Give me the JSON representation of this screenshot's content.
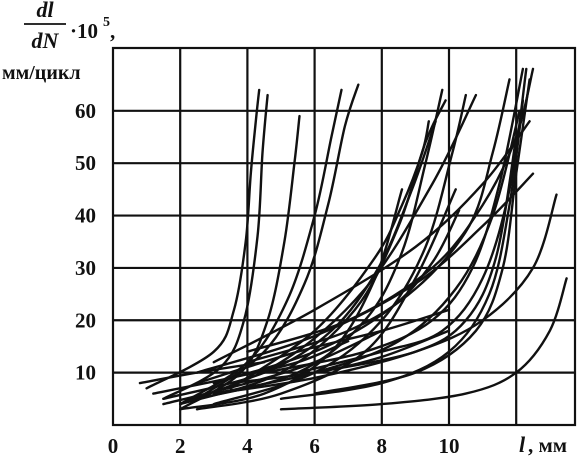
{
  "chart_data": {
    "type": "line",
    "ylabel_fraction_top": "dl",
    "ylabel_fraction_bottom": "dN",
    "ylabel_multiplier": "·10",
    "ylabel_exponent": "5",
    "ylabel_comma": ",",
    "ylabel_units": "мм/цикл",
    "xlabel_var": "l",
    "xlabel_units": ", мм",
    "xlim": [
      0,
      13.75
    ],
    "ylim": [
      0,
      72
    ],
    "x_ticks": [
      "0",
      "2",
      "4",
      "6",
      "8",
      "10"
    ],
    "y_ticks": [
      "10",
      "20",
      "30",
      "40",
      "50",
      "60"
    ],
    "grid": true,
    "series": [
      {
        "x": [
          1.0,
          3.0,
          3.6,
          3.95,
          4.1,
          4.25,
          4.35
        ],
        "y": [
          7,
          14,
          22,
          35,
          48,
          58,
          64
        ]
      },
      {
        "x": [
          1.5,
          3.2,
          3.9,
          4.3,
          4.45,
          4.6
        ],
        "y": [
          5,
          11,
          20,
          36,
          52,
          63
        ]
      },
      {
        "x": [
          2.0,
          3.8,
          4.6,
          5.1,
          5.4,
          5.55
        ],
        "y": [
          3,
          10,
          20,
          35,
          50,
          59
        ]
      },
      {
        "x": [
          2.0,
          4.0,
          5.2,
          6.0,
          6.5,
          6.8
        ],
        "y": [
          4,
          12,
          24,
          40,
          55,
          64
        ]
      },
      {
        "x": [
          2.5,
          4.5,
          5.7,
          6.4,
          6.9,
          7.3
        ],
        "y": [
          5,
          14,
          27,
          42,
          57,
          65
        ]
      },
      {
        "x": [
          1.5,
          4.5,
          6.5,
          7.9,
          8.9,
          9.6
        ],
        "y": [
          5,
          10,
          18,
          30,
          45,
          58
        ]
      },
      {
        "x": [
          2.5,
          5.5,
          7.5,
          8.6,
          9.3,
          9.8
        ],
        "y": [
          5,
          10,
          20,
          33,
          50,
          64
        ]
      },
      {
        "x": [
          2.0,
          5.0,
          7.2,
          8.5,
          9.3,
          9.9
        ],
        "y": [
          4,
          10,
          22,
          38,
          54,
          62
        ]
      },
      {
        "x": [
          3.0,
          6.0,
          8.0,
          9.3,
          10.1,
          10.5
        ],
        "y": [
          4,
          10,
          20,
          34,
          52,
          63
        ]
      },
      {
        "x": [
          2.0,
          5.0,
          7.5,
          9.5,
          10.8
        ],
        "y": [
          4,
          12,
          26,
          46,
          63
        ]
      },
      {
        "x": [
          3.5,
          6.0,
          7.8,
          8.6,
          9.2,
          9.4
        ],
        "y": [
          7,
          18,
          32,
          42,
          52,
          58
        ]
      },
      {
        "x": [
          3.0,
          6.0,
          8.2,
          9.5,
          10.3
        ],
        "y": [
          8,
          14,
          22,
          31,
          41
        ]
      },
      {
        "x": [
          4.0,
          7.0,
          9.0,
          10.6,
          11.3,
          11.8
        ],
        "y": [
          12,
          18,
          26,
          38,
          52,
          66
        ]
      },
      {
        "x": [
          4.5,
          7.5,
          9.5,
          10.7,
          11.5,
          12.2
        ],
        "y": [
          10,
          14,
          20,
          30,
          46,
          68
        ]
      },
      {
        "x": [
          5.5,
          8.0,
          9.8,
          11.0,
          11.8,
          12.3
        ],
        "y": [
          10,
          14,
          18,
          28,
          45,
          68
        ]
      },
      {
        "x": [
          4.0,
          7.0,
          9.5,
          11.0,
          12.0,
          12.5
        ],
        "y": [
          14,
          20,
          30,
          42,
          55,
          68
        ]
      },
      {
        "x": [
          3.0,
          6.0,
          9.0,
          11.0,
          12.4
        ],
        "y": [
          12,
          22,
          34,
          46,
          58
        ]
      },
      {
        "x": [
          2.5,
          6.0,
          9.0,
          11.0,
          12.5
        ],
        "y": [
          10,
          17,
          27,
          38,
          48
        ]
      },
      {
        "x": [
          3.0,
          6.0,
          9.0,
          11.0,
          12.5,
          13.2
        ],
        "y": [
          6,
          9,
          14,
          20,
          30,
          44
        ]
      },
      {
        "x": [
          5.0,
          8.0,
          10.5,
          12.0,
          13.0,
          13.5
        ],
        "y": [
          3,
          4,
          6,
          10,
          18,
          28
        ]
      },
      {
        "x": [
          6.0,
          9.0,
          10.8,
          11.6,
          12.0,
          12.4
        ],
        "y": [
          6,
          10,
          18,
          30,
          48,
          66
        ]
      },
      {
        "x": [
          5.0,
          8.0,
          10.0,
          11.2,
          11.8,
          12.2
        ],
        "y": [
          5,
          8,
          14,
          25,
          42,
          62
        ]
      },
      {
        "x": [
          6.0,
          9.0,
          10.5,
          11.4,
          12.0
        ],
        "y": [
          10,
          14,
          20,
          32,
          55
        ]
      },
      {
        "x": [
          3.0,
          6.0,
          8.5,
          10.2,
          11.3,
          12.1
        ],
        "y": [
          6,
          10,
          16,
          26,
          40,
          60
        ]
      },
      {
        "x": [
          2.5,
          5.0,
          7.5,
          9.0,
          10.2
        ],
        "y": [
          3,
          6,
          14,
          28,
          45
        ]
      },
      {
        "x": [
          2.0,
          4.5,
          6.5,
          7.8,
          8.6
        ],
        "y": [
          3,
          6,
          14,
          28,
          45
        ]
      },
      {
        "x": [
          1.5,
          4.0,
          6.0,
          8.0
        ],
        "y": [
          4,
          8,
          12,
          18
        ]
      },
      {
        "x": [
          1.2,
          3.5,
          5.5,
          7.0
        ],
        "y": [
          6,
          9,
          12,
          16
        ]
      },
      {
        "x": [
          0.8,
          2.5,
          4.5
        ],
        "y": [
          8,
          10,
          12
        ]
      },
      {
        "x": [
          2.5,
          5.5,
          8.0,
          10.0
        ],
        "y": [
          8,
          14,
          18,
          22
        ]
      },
      {
        "x": [
          3.5,
          6.0,
          8.0,
          10.0
        ],
        "y": [
          8,
          10,
          13,
          18
        ]
      }
    ]
  }
}
